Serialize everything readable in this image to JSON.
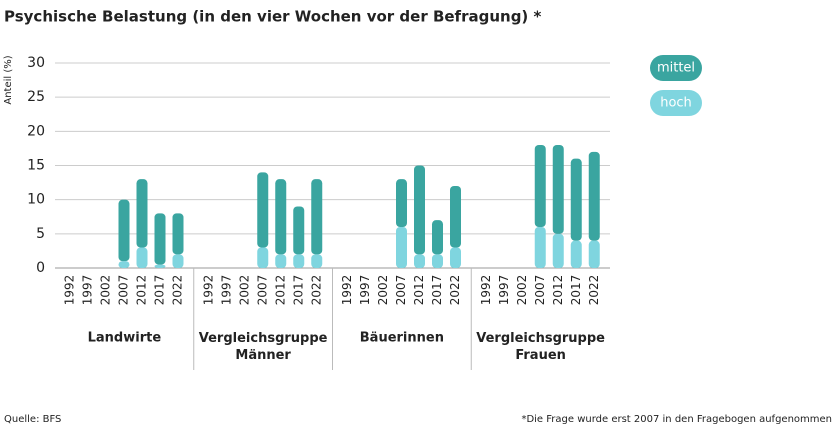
{
  "chart_data": {
    "type": "bar",
    "stacked": true,
    "title": "Psychische Belastung (in den vier Wochen vor der Befragung) *",
    "y_label": "Anteil (%)",
    "categories": [
      "1992",
      "1997",
      "2002",
      "2007",
      "2012",
      "2017",
      "2022"
    ],
    "groups": [
      "Landwirte",
      "Vergleichsgruppe Männer",
      "Bäuerinnen",
      "Vergleichsgruppe Frauen"
    ],
    "series": [
      {
        "name": "hoch",
        "color": "#7fd5df",
        "values": [
          [
            null,
            null,
            null,
            1,
            3,
            0.5,
            2
          ],
          [
            null,
            null,
            null,
            3,
            2,
            2,
            2
          ],
          [
            null,
            null,
            null,
            6,
            2,
            2,
            3
          ],
          [
            null,
            null,
            null,
            6,
            5,
            4,
            4
          ]
        ]
      },
      {
        "name": "mittel",
        "color": "#3aa5a0",
        "values": [
          [
            null,
            null,
            null,
            9,
            10,
            7.5,
            6
          ],
          [
            null,
            null,
            null,
            11,
            11,
            7,
            11
          ],
          [
            null,
            null,
            null,
            7,
            13,
            5,
            9
          ],
          [
            null,
            null,
            null,
            12,
            13,
            12,
            13
          ]
        ]
      }
    ],
    "ylim": [
      0,
      30
    ],
    "yticks": [
      0,
      5,
      10,
      15,
      20,
      25,
      30
    ],
    "grid": true,
    "legend": "top-right",
    "source": "Quelle: BFS",
    "footnote": "*Die Frage wurde erst 2007 in den Fragebogen aufgenommen"
  }
}
